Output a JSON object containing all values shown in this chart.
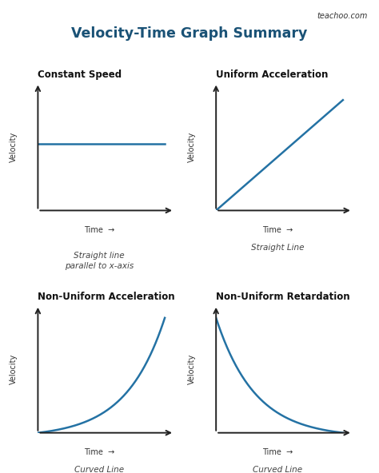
{
  "title": "Velocity-Time Graph Summary",
  "title_color": "#1a5276",
  "title_fontsize": 12.5,
  "watermark": "teachoo.com",
  "background_color": "#ffffff",
  "line_color": "#2472a4",
  "line_width": 1.8,
  "axis_color": "#222222",
  "subplots": [
    {
      "title": "Constant Speed",
      "caption": "Straight line\nparallel to x-axis",
      "type": "constant"
    },
    {
      "title": "Uniform Acceleration",
      "caption": "Straight Line",
      "type": "linear"
    },
    {
      "title": "Non-Uniform Acceleration",
      "caption": "Curved Line",
      "type": "exponential"
    },
    {
      "title": "Non-Uniform Retardation",
      "caption": "Curved Line",
      "type": "sigmoid_down"
    }
  ]
}
